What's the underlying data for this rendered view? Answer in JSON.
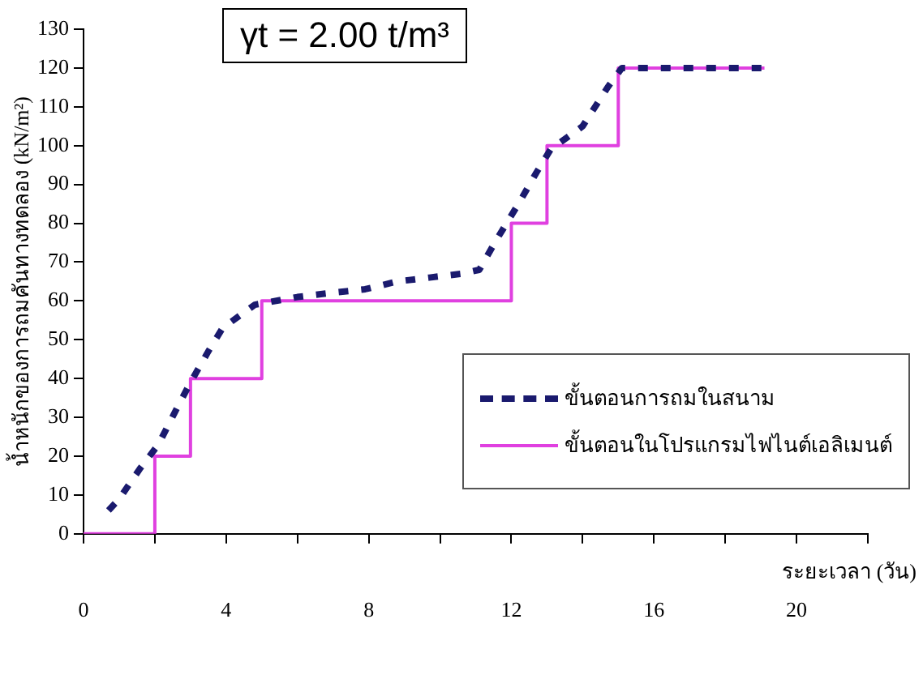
{
  "chart_data": {
    "type": "line",
    "xlabel": "ระยะเวลา (วัน)",
    "ylabel": "น้ำหนักของการถมคันทางทดลอง (kN/m²)",
    "annotations": [
      "γt = 2.00 t/m³"
    ],
    "xlim": [
      0,
      22
    ],
    "xticks": [
      0,
      {
        "value": 2,
        "label": null
      },
      4,
      {
        "value": 6,
        "label": null
      },
      8,
      {
        "value": 10,
        "label": null
      },
      12,
      {
        "value": 14,
        "label": null
      },
      16,
      {
        "value": 18,
        "label": null
      },
      20,
      {
        "value": 22,
        "label": null
      }
    ],
    "ylim": [
      0,
      130
    ],
    "yticks": [
      0,
      10,
      20,
      30,
      40,
      50,
      60,
      70,
      80,
      90,
      100,
      110,
      120,
      130
    ],
    "grid": false,
    "legend": "bottom right",
    "marker": "none",
    "series": [
      {
        "name": "ขั้นตอนการถมในสนาม",
        "color": "#1a1a6e",
        "line_style": "dashed",
        "x": [
          0.7,
          1.0,
          1.6,
          2.1,
          2.6,
          3.0,
          3.5,
          3.9,
          4.8,
          6.0,
          6.9,
          7.9,
          8.8,
          9.7,
          10.6,
          11.1,
          11.6,
          12.2,
          12.7,
          13.1,
          14.0,
          14.7,
          15.1,
          19.1
        ],
        "values": [
          6,
          9,
          17,
          23,
          32,
          39,
          47,
          53,
          59,
          61,
          62,
          63,
          65,
          66,
          67,
          68,
          76,
          85,
          93,
          99,
          105,
          115,
          120,
          120
        ]
      },
      {
        "name": "ขั้นตอนในโปรแกรมไฟไนต์เอลิเมนต์",
        "color": "#e040e0",
        "type": "step",
        "line_style": "solid",
        "x": [
          0,
          2,
          3,
          5,
          12,
          13,
          15,
          19.1
        ],
        "values": [
          0,
          20,
          40,
          60,
          80,
          100,
          120,
          120
        ]
      }
    ]
  }
}
